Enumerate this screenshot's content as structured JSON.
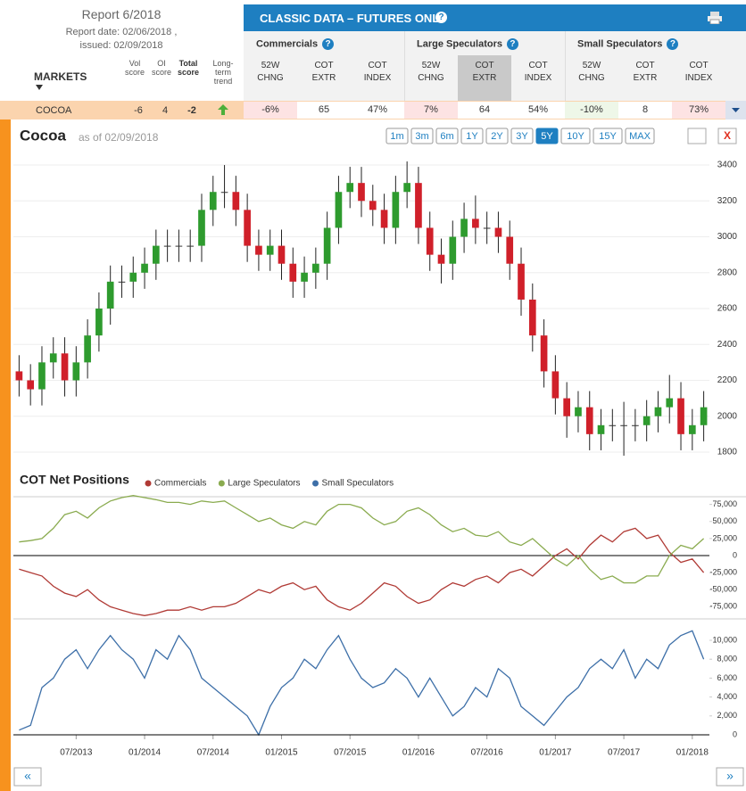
{
  "report": {
    "title": "Report 6/2018",
    "report_date": "Report date: 02/06/2018 ,",
    "issued": "issued: 02/09/2018"
  },
  "banner": "CLASSIC DATA – FUTURES ONLY",
  "table": {
    "markets": "MARKETS",
    "score_headers": [
      "Vol score",
      "OI score",
      "Total score",
      "Long-term trend"
    ],
    "groups": [
      {
        "name": "Commercials",
        "columns": [
          "52W CHNG",
          "COT EXTR",
          "COT INDEX"
        ]
      },
      {
        "name": "Large Speculators",
        "columns": [
          "52W CHNG",
          "COT EXTR",
          "COT INDEX"
        ]
      },
      {
        "name": "Small Speculators",
        "columns": [
          "52W CHNG",
          "COT EXTR",
          "COT INDEX"
        ]
      }
    ],
    "rows": [
      [
        "COCOA",
        "-6",
        "4",
        "-2",
        "-6%",
        "65",
        "47%",
        "7%",
        "64",
        "54%",
        "-10%",
        "8",
        "73%"
      ]
    ]
  },
  "price_chart": {
    "type": "candlestick",
    "title": "Cocoa",
    "subtitle": "as of 02/09/2018",
    "ranges": [
      {
        "label": "1m"
      },
      {
        "label": "3m"
      },
      {
        "label": "6m"
      },
      {
        "label": "1Y"
      },
      {
        "label": "2Y"
      },
      {
        "label": "3Y"
      },
      {
        "label": "5Y",
        "selected": true
      },
      {
        "label": "10Y"
      },
      {
        "label": "15Y"
      },
      {
        "label": "MAX"
      }
    ],
    "open": [
      2250,
      2200,
      2150,
      2300,
      2350,
      2200,
      2300,
      2450,
      2600,
      2750,
      2750,
      2800,
      2850,
      2950,
      2950,
      2950,
      2950,
      3150,
      3250,
      3250,
      3150,
      2950,
      2900,
      2950,
      2850,
      2750,
      2800,
      2850,
      3050,
      3250,
      3300,
      3200,
      3150,
      3050,
      3250,
      3300,
      3050,
      2900,
      2850,
      3000,
      3100,
      3050,
      3050,
      3000,
      2850,
      2650,
      2450,
      2250,
      2100,
      2000,
      2050,
      1900,
      1950,
      1950,
      1950,
      1950,
      2000,
      2050,
      2100,
      1900,
      1950
    ],
    "high": [
      2340,
      2290,
      2390,
      2440,
      2440,
      2390,
      2540,
      2690,
      2840,
      2840,
      2890,
      2940,
      3040,
      3040,
      3040,
      3040,
      3240,
      3340,
      3400,
      3340,
      3240,
      3040,
      3040,
      3040,
      2940,
      2890,
      2940,
      3140,
      3340,
      3390,
      3390,
      3290,
      3240,
      3340,
      3420,
      3390,
      3140,
      2990,
      3090,
      3190,
      3230,
      3140,
      3140,
      3090,
      2940,
      2740,
      2540,
      2340,
      2190,
      2140,
      2140,
      2040,
      2040,
      2080,
      2040,
      2090,
      2140,
      2230,
      2190,
      2040,
      2140
    ],
    "low": [
      2110,
      2060,
      2060,
      2210,
      2110,
      2110,
      2210,
      2360,
      2510,
      2660,
      2660,
      2710,
      2760,
      2860,
      2860,
      2860,
      2860,
      3060,
      3160,
      3060,
      2860,
      2810,
      2810,
      2760,
      2660,
      2660,
      2710,
      2760,
      2960,
      3160,
      3110,
      3060,
      2960,
      2960,
      3160,
      2960,
      2810,
      2740,
      2760,
      2910,
      2960,
      2960,
      2910,
      2760,
      2560,
      2360,
      2160,
      2010,
      1880,
      1910,
      1810,
      1810,
      1860,
      1780,
      1860,
      1860,
      1910,
      1960,
      1810,
      1810,
      1860
    ],
    "close": [
      2200,
      2150,
      2300,
      2350,
      2200,
      2300,
      2450,
      2600,
      2750,
      2750,
      2800,
      2850,
      2950,
      2950,
      2950,
      2950,
      3150,
      3250,
      3250,
      3150,
      2950,
      2900,
      2950,
      2850,
      2750,
      2800,
      2850,
      3050,
      3250,
      3300,
      3200,
      3150,
      3050,
      3250,
      3300,
      3050,
      2900,
      2850,
      3000,
      3100,
      3050,
      3050,
      3000,
      2850,
      2650,
      2450,
      2250,
      2100,
      2000,
      2050,
      1900,
      1950,
      1950,
      1950,
      1950,
      2000,
      2050,
      2100,
      1900,
      1950,
      2050
    ],
    "ylim": [
      1760,
      3450
    ],
    "yticks": [
      1800,
      2000,
      2200,
      2400,
      2600,
      2800,
      3000,
      3200,
      3400
    ],
    "up_color": "#2e9b2e",
    "down_color": "#d0202a"
  },
  "cot_chart": {
    "type": "line",
    "title": "COT Net Positions",
    "categories": [
      null,
      null,
      null,
      null,
      null,
      "07/2013",
      null,
      null,
      null,
      null,
      null,
      "01/2014",
      null,
      null,
      null,
      null,
      null,
      "07/2014",
      null,
      null,
      null,
      null,
      null,
      "01/2015",
      null,
      null,
      null,
      null,
      null,
      "07/2015",
      null,
      null,
      null,
      null,
      null,
      "01/2016",
      null,
      null,
      null,
      null,
      null,
      "07/2016",
      null,
      null,
      null,
      null,
      null,
      "01/2017",
      null,
      null,
      null,
      null,
      null,
      "07/2017",
      null,
      null,
      null,
      null,
      null,
      "01/2018",
      null
    ],
    "series": [
      {
        "name": "Commercials",
        "color": "#b03a35",
        "axis": "y",
        "values": [
          -20000,
          -25000,
          -30000,
          -45000,
          -55000,
          -60000,
          -50000,
          -65000,
          -75000,
          -80000,
          -85000,
          -88000,
          -85000,
          -80000,
          -80000,
          -75000,
          -80000,
          -75000,
          -75000,
          -70000,
          -60000,
          -50000,
          -55000,
          -45000,
          -40000,
          -50000,
          -45000,
          -65000,
          -75000,
          -80000,
          -70000,
          -55000,
          -40000,
          -45000,
          -60000,
          -70000,
          -65000,
          -50000,
          -40000,
          -45000,
          -35000,
          -30000,
          -40000,
          -25000,
          -20000,
          -30000,
          -15000,
          0,
          10000,
          -5000,
          15000,
          30000,
          20000,
          35000,
          40000,
          25000,
          30000,
          5000,
          -10000,
          -5000,
          -25000
        ]
      },
      {
        "name": "Large Speculators",
        "color": "#8aab4f",
        "axis": "y",
        "values": [
          20000,
          22000,
          25000,
          40000,
          60000,
          65000,
          55000,
          70000,
          80000,
          85000,
          88000,
          85000,
          82000,
          78000,
          78000,
          75000,
          80000,
          78000,
          80000,
          70000,
          60000,
          50000,
          55000,
          45000,
          40000,
          50000,
          45000,
          65000,
          75000,
          75000,
          70000,
          55000,
          45000,
          50000,
          65000,
          70000,
          60000,
          45000,
          35000,
          40000,
          30000,
          28000,
          35000,
          20000,
          15000,
          25000,
          10000,
          -5000,
          -15000,
          0,
          -20000,
          -35000,
          -30000,
          -40000,
          -40000,
          -30000,
          -30000,
          0,
          15000,
          10000,
          25000
        ]
      },
      {
        "name": "Small Speculators",
        "color": "#3d6fa8",
        "axis": "y2",
        "values": [
          500,
          1000,
          5000,
          6000,
          8000,
          9000,
          7000,
          9000,
          10500,
          9000,
          8000,
          6000,
          9000,
          8000,
          10500,
          9000,
          6000,
          5000,
          4000,
          3000,
          2000,
          0,
          3000,
          5000,
          6000,
          8000,
          7000,
          9000,
          10500,
          8000,
          6000,
          5000,
          5500,
          7000,
          6000,
          4000,
          6000,
          4000,
          2000,
          3000,
          5000,
          4000,
          7000,
          6000,
          3000,
          2000,
          1000,
          2500,
          4000,
          5000,
          7000,
          8000,
          7000,
          9000,
          6000,
          8000,
          7000,
          9500,
          10500,
          11000,
          8000
        ]
      }
    ],
    "ylim": [
      -85000,
      85000
    ],
    "yticks": [
      {
        "value": -75000,
        "label": "-75,000"
      },
      {
        "value": -50000,
        "label": "-50,000"
      },
      {
        "value": -25000,
        "label": "-25,000"
      },
      0,
      {
        "value": 25000,
        "label": "25,000"
      },
      {
        "value": 50000,
        "label": "50,000"
      },
      {
        "value": 75000,
        "label": "75,000"
      }
    ],
    "y2lim": [
      0,
      11700
    ],
    "y2ticks": [
      0,
      {
        "value": 2000,
        "label": "2,000"
      },
      {
        "value": 4000,
        "label": "4,000"
      },
      {
        "value": 6000,
        "label": "6,000"
      },
      {
        "value": 8000,
        "label": "8,000"
      },
      {
        "value": 10000,
        "label": "10,000"
      }
    ]
  },
  "nav": {
    "prev": "«",
    "next": "»"
  }
}
